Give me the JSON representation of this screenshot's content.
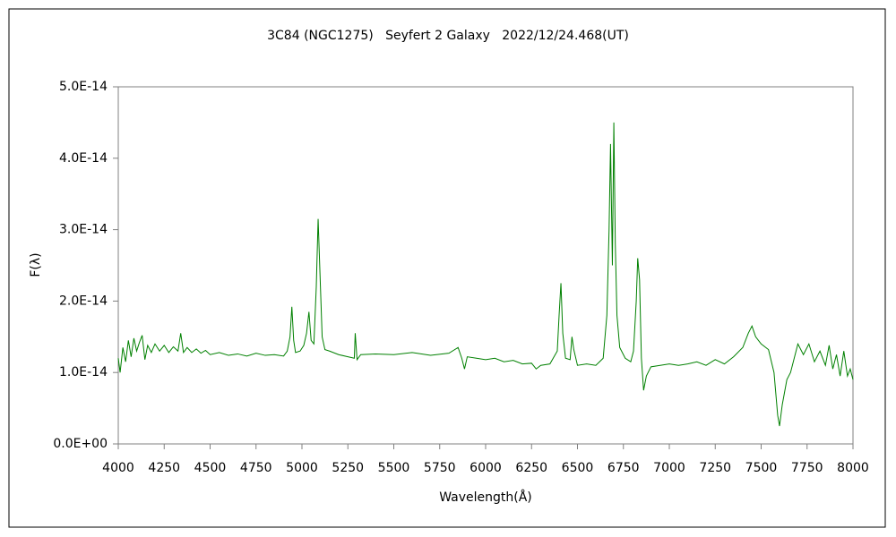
{
  "chart_data": {
    "type": "line",
    "title": "3C84 (NGC1275)   Seyfert 2 Galaxy   2022/12/24.468(UT)",
    "xlabel": "Wavelength(Å)",
    "ylabel": "F(λ)",
    "xlim": [
      4000,
      8000
    ],
    "xticks": [
      4000,
      4250,
      4500,
      4750,
      5000,
      5250,
      5500,
      5750,
      6000,
      6250,
      6500,
      6750,
      7000,
      7250,
      7500,
      7750,
      8000
    ],
    "ylim": [
      0,
      5e-14
    ],
    "yticks": [
      {
        "value": 0,
        "label": "0.0E+00"
      },
      {
        "value": 1e-14,
        "label": "1.0E-14"
      },
      {
        "value": 2e-14,
        "label": "2.0E-14"
      },
      {
        "value": 3e-14,
        "label": "3.0E-14"
      },
      {
        "value": 4e-14,
        "label": "4.0E-14"
      },
      {
        "value": 5e-14,
        "label": "5.0E-14"
      }
    ],
    "grid": false,
    "series": [
      {
        "color": "#008000",
        "x": [
          4000,
          4010,
          4025,
          4040,
          4055,
          4070,
          4085,
          4100,
          4115,
          4130,
          4145,
          4160,
          4180,
          4200,
          4225,
          4250,
          4275,
          4300,
          4325,
          4340,
          4355,
          4375,
          4400,
          4425,
          4450,
          4475,
          4500,
          4550,
          4600,
          4650,
          4700,
          4750,
          4800,
          4850,
          4900,
          4920,
          4935,
          4945,
          4955,
          4965,
          4990,
          5010,
          5025,
          5038,
          5050,
          5065,
          5078,
          5088,
          5098,
          5110,
          5125,
          5150,
          5200,
          5250,
          5285,
          5290,
          5300,
          5320,
          5400,
          5500,
          5600,
          5700,
          5800,
          5850,
          5870,
          5885,
          5900,
          5950,
          6000,
          6050,
          6100,
          6150,
          6200,
          6250,
          6275,
          6300,
          6350,
          6390,
          6400,
          6410,
          6420,
          6435,
          6460,
          6470,
          6480,
          6500,
          6550,
          6600,
          6640,
          6660,
          6672,
          6680,
          6690,
          6698,
          6706,
          6715,
          6730,
          6760,
          6790,
          6805,
          6820,
          6828,
          6838,
          6848,
          6860,
          6875,
          6900,
          6950,
          7000,
          7050,
          7100,
          7150,
          7200,
          7250,
          7300,
          7350,
          7400,
          7430,
          7450,
          7470,
          7500,
          7540,
          7570,
          7590,
          7600,
          7615,
          7640,
          7660,
          7680,
          7700,
          7730,
          7760,
          7790,
          7820,
          7850,
          7870,
          7890,
          7910,
          7930,
          7950,
          7970,
          7985,
          8000
        ],
        "values": [
          1.2e-14,
          1e-14,
          1.35e-14,
          1.15e-14,
          1.45e-14,
          1.22e-14,
          1.48e-14,
          1.3e-14,
          1.42e-14,
          1.52e-14,
          1.18e-14,
          1.38e-14,
          1.28e-14,
          1.4e-14,
          1.3e-14,
          1.38e-14,
          1.28e-14,
          1.36e-14,
          1.3e-14,
          1.55e-14,
          1.28e-14,
          1.35e-14,
          1.28e-14,
          1.33e-14,
          1.27e-14,
          1.31e-14,
          1.25e-14,
          1.28e-14,
          1.24e-14,
          1.26e-14,
          1.23e-14,
          1.27e-14,
          1.24e-14,
          1.25e-14,
          1.23e-14,
          1.3e-14,
          1.5e-14,
          1.92e-14,
          1.45e-14,
          1.28e-14,
          1.3e-14,
          1.38e-14,
          1.55e-14,
          1.85e-14,
          1.45e-14,
          1.4e-14,
          2.2e-14,
          3.15e-14,
          2.4e-14,
          1.5e-14,
          1.32e-14,
          1.3e-14,
          1.25e-14,
          1.22e-14,
          1.2e-14,
          1.55e-14,
          1.18e-14,
          1.25e-14,
          1.26e-14,
          1.25e-14,
          1.28e-14,
          1.24e-14,
          1.27e-14,
          1.35e-14,
          1.2e-14,
          1.05e-14,
          1.22e-14,
          1.2e-14,
          1.18e-14,
          1.2e-14,
          1.15e-14,
          1.17e-14,
          1.12e-14,
          1.13e-14,
          1.05e-14,
          1.1e-14,
          1.12e-14,
          1.3e-14,
          1.8e-14,
          2.25e-14,
          1.55e-14,
          1.2e-14,
          1.18e-14,
          1.5e-14,
          1.32e-14,
          1.1e-14,
          1.12e-14,
          1.1e-14,
          1.2e-14,
          1.8e-14,
          3e-14,
          4.2e-14,
          2.5e-14,
          4.5e-14,
          2.8e-14,
          1.8e-14,
          1.35e-14,
          1.2e-14,
          1.15e-14,
          1.3e-14,
          2e-14,
          2.6e-14,
          2.3e-14,
          1.2e-14,
          7.5e-15,
          9.5e-15,
          1.08e-14,
          1.1e-14,
          1.12e-14,
          1.1e-14,
          1.12e-14,
          1.15e-14,
          1.1e-14,
          1.18e-14,
          1.12e-14,
          1.22e-14,
          1.35e-14,
          1.55e-14,
          1.65e-14,
          1.5e-14,
          1.4e-14,
          1.32e-14,
          1e-14,
          4e-15,
          2.5e-15,
          5.5e-15,
          9e-15,
          1e-14,
          1.2e-14,
          1.4e-14,
          1.25e-14,
          1.4e-14,
          1.15e-14,
          1.3e-14,
          1.1e-14,
          1.38e-14,
          1.05e-14,
          1.25e-14,
          9.5e-15,
          1.3e-14,
          9.5e-15,
          1.05e-14,
          9e-15
        ]
      }
    ]
  }
}
